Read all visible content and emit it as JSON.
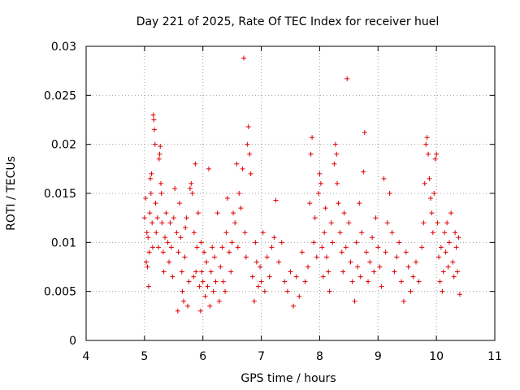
{
  "chart_data": {
    "type": "scatter",
    "title": "Day 221 of 2025, Rate Of TEC Index for receiver huel",
    "xlabel": "GPS time / hours",
    "ylabel": "ROTI / TECUs",
    "xlim": [
      4,
      11
    ],
    "ylim": [
      0,
      0.03
    ],
    "x_ticks": [
      "4",
      "5",
      "6",
      "7",
      "8",
      "9",
      "10",
      "11"
    ],
    "y_ticks": [
      "0",
      "0.005",
      "0.01",
      "0.015",
      "0.02",
      "0.025",
      "0.03"
    ],
    "grid": true,
    "legend": "none",
    "marker": "+",
    "color": "#e00000",
    "series": [
      {
        "points": [
          [
            5.0,
            0.0125
          ],
          [
            5.02,
            0.0145
          ],
          [
            5.03,
            0.008
          ],
          [
            5.04,
            0.011
          ],
          [
            5.05,
            0.0075
          ],
          [
            5.06,
            0.0105
          ],
          [
            5.07,
            0.0055
          ],
          [
            5.08,
            0.009
          ],
          [
            5.09,
            0.013
          ],
          [
            5.1,
            0.0165
          ],
          [
            5.11,
            0.015
          ],
          [
            5.12,
            0.017
          ],
          [
            5.13,
            0.012
          ],
          [
            5.14,
            0.0095
          ],
          [
            5.15,
            0.023
          ],
          [
            5.16,
            0.0225
          ],
          [
            5.17,
            0.0215
          ],
          [
            5.18,
            0.02
          ],
          [
            5.19,
            0.014
          ],
          [
            5.2,
            0.011
          ],
          [
            5.22,
            0.0125
          ],
          [
            5.24,
            0.0095
          ],
          [
            5.25,
            0.0185
          ],
          [
            5.26,
            0.019
          ],
          [
            5.27,
            0.0198
          ],
          [
            5.28,
            0.016
          ],
          [
            5.29,
            0.015
          ],
          [
            5.3,
            0.012
          ],
          [
            5.32,
            0.009
          ],
          [
            5.33,
            0.007
          ],
          [
            5.35,
            0.0105
          ],
          [
            5.37,
            0.013
          ],
          [
            5.4,
            0.01
          ],
          [
            5.42,
            0.008
          ],
          [
            5.44,
            0.012
          ],
          [
            5.46,
            0.0095
          ],
          [
            5.48,
            0.0065
          ],
          [
            5.5,
            0.0125
          ],
          [
            5.52,
            0.0155
          ],
          [
            5.55,
            0.011
          ],
          [
            5.57,
            0.003
          ],
          [
            5.58,
            0.009
          ],
          [
            5.6,
            0.014
          ],
          [
            5.62,
            0.0105
          ],
          [
            5.64,
            0.007
          ],
          [
            5.65,
            0.005
          ],
          [
            5.67,
            0.004
          ],
          [
            5.69,
            0.0085
          ],
          [
            5.7,
            0.0115
          ],
          [
            5.72,
            0.0125
          ],
          [
            5.74,
            0.0035
          ],
          [
            5.76,
            0.006
          ],
          [
            5.78,
            0.0155
          ],
          [
            5.8,
            0.016
          ],
          [
            5.82,
            0.015
          ],
          [
            5.84,
            0.0065
          ],
          [
            5.85,
            0.011
          ],
          [
            5.87,
            0.018
          ],
          [
            5.88,
            0.007
          ],
          [
            5.9,
            0.0095
          ],
          [
            5.92,
            0.013
          ],
          [
            5.94,
            0.0055
          ],
          [
            5.96,
            0.003
          ],
          [
            5.97,
            0.01
          ],
          [
            5.98,
            0.007
          ],
          [
            6.0,
            0.006
          ],
          [
            6.02,
            0.009
          ],
          [
            6.04,
            0.0045
          ],
          [
            6.06,
            0.008
          ],
          [
            6.08,
            0.0055
          ],
          [
            6.1,
            0.0175
          ],
          [
            6.12,
            0.0035
          ],
          [
            6.14,
            0.007
          ],
          [
            6.16,
            0.0095
          ],
          [
            6.18,
            0.005
          ],
          [
            6.2,
            0.0085
          ],
          [
            6.22,
            0.006
          ],
          [
            6.25,
            0.013
          ],
          [
            6.28,
            0.004
          ],
          [
            6.3,
            0.0075
          ],
          [
            6.33,
            0.0095
          ],
          [
            6.35,
            0.006
          ],
          [
            6.38,
            0.005
          ],
          [
            6.4,
            0.011
          ],
          [
            6.42,
            0.0145
          ],
          [
            6.45,
            0.009
          ],
          [
            6.48,
            0.007
          ],
          [
            6.5,
            0.01
          ],
          [
            6.52,
            0.013
          ],
          [
            6.55,
            0.012
          ],
          [
            6.58,
            0.018
          ],
          [
            6.6,
            0.0095
          ],
          [
            6.62,
            0.015
          ],
          [
            6.65,
            0.0135
          ],
          [
            6.68,
            0.0175
          ],
          [
            6.7,
            0.0288
          ],
          [
            6.72,
            0.011
          ],
          [
            6.74,
            0.0085
          ],
          [
            6.76,
            0.02
          ],
          [
            6.78,
            0.0218
          ],
          [
            6.8,
            0.019
          ],
          [
            6.82,
            0.017
          ],
          [
            6.85,
            0.0065
          ],
          [
            6.88,
            0.004
          ],
          [
            6.9,
            0.01
          ],
          [
            6.92,
            0.008
          ],
          [
            6.95,
            0.0055
          ],
          [
            6.98,
            0.0075
          ],
          [
            7.0,
            0.006
          ],
          [
            7.03,
            0.011
          ],
          [
            7.06,
            0.005
          ],
          [
            7.1,
            0.0085
          ],
          [
            7.14,
            0.0065
          ],
          [
            7.18,
            0.0095
          ],
          [
            7.22,
            0.0105
          ],
          [
            7.25,
            0.0143
          ],
          [
            7.3,
            0.008
          ],
          [
            7.35,
            0.01
          ],
          [
            7.4,
            0.006
          ],
          [
            7.45,
            0.005
          ],
          [
            7.5,
            0.007
          ],
          [
            7.55,
            0.0035
          ],
          [
            7.6,
            0.0065
          ],
          [
            7.65,
            0.0045
          ],
          [
            7.7,
            0.009
          ],
          [
            7.75,
            0.006
          ],
          [
            7.8,
            0.0075
          ],
          [
            7.83,
            0.014
          ],
          [
            7.85,
            0.019
          ],
          [
            7.87,
            0.0207
          ],
          [
            7.9,
            0.01
          ],
          [
            7.92,
            0.0125
          ],
          [
            7.95,
            0.0085
          ],
          [
            7.98,
            0.015
          ],
          [
            8.0,
            0.017
          ],
          [
            8.02,
            0.016
          ],
          [
            8.04,
            0.0095
          ],
          [
            8.06,
            0.0065
          ],
          [
            8.08,
            0.011
          ],
          [
            8.1,
            0.0135
          ],
          [
            8.12,
            0.0085
          ],
          [
            8.15,
            0.007
          ],
          [
            8.17,
            0.005
          ],
          [
            8.2,
            0.012
          ],
          [
            8.22,
            0.01
          ],
          [
            8.25,
            0.018
          ],
          [
            8.27,
            0.02
          ],
          [
            8.29,
            0.019
          ],
          [
            8.3,
            0.016
          ],
          [
            8.32,
            0.014
          ],
          [
            8.35,
            0.011
          ],
          [
            8.38,
            0.009
          ],
          [
            8.4,
            0.007
          ],
          [
            8.42,
            0.013
          ],
          [
            8.45,
            0.0095
          ],
          [
            8.47,
            0.0267
          ],
          [
            8.5,
            0.012
          ],
          [
            8.53,
            0.008
          ],
          [
            8.56,
            0.006
          ],
          [
            8.6,
            0.004
          ],
          [
            8.63,
            0.01
          ],
          [
            8.65,
            0.0075
          ],
          [
            8.68,
            0.014
          ],
          [
            8.7,
            0.0065
          ],
          [
            8.72,
            0.011
          ],
          [
            8.75,
            0.0172
          ],
          [
            8.77,
            0.0212
          ],
          [
            8.8,
            0.009
          ],
          [
            8.83,
            0.006
          ],
          [
            8.86,
            0.008
          ],
          [
            8.9,
            0.0105
          ],
          [
            8.93,
            0.007
          ],
          [
            8.96,
            0.0125
          ],
          [
            9.0,
            0.0095
          ],
          [
            9.03,
            0.0075
          ],
          [
            9.06,
            0.0055
          ],
          [
            9.1,
            0.0165
          ],
          [
            9.13,
            0.009
          ],
          [
            9.16,
            0.012
          ],
          [
            9.2,
            0.015
          ],
          [
            9.24,
            0.011
          ],
          [
            9.28,
            0.007
          ],
          [
            9.32,
            0.0085
          ],
          [
            9.36,
            0.01
          ],
          [
            9.4,
            0.006
          ],
          [
            9.44,
            0.004
          ],
          [
            9.48,
            0.009
          ],
          [
            9.52,
            0.0075
          ],
          [
            9.56,
            0.005
          ],
          [
            9.6,
            0.0065
          ],
          [
            9.65,
            0.008
          ],
          [
            9.7,
            0.006
          ],
          [
            9.75,
            0.0095
          ],
          [
            9.78,
            0.012
          ],
          [
            9.8,
            0.016
          ],
          [
            9.82,
            0.02
          ],
          [
            9.84,
            0.0207
          ],
          [
            9.86,
            0.019
          ],
          [
            9.88,
            0.0165
          ],
          [
            9.9,
            0.0145
          ],
          [
            9.92,
            0.013
          ],
          [
            9.94,
            0.011
          ],
          [
            9.96,
            0.015
          ],
          [
            9.98,
            0.0185
          ],
          [
            10.0,
            0.019
          ],
          [
            10.02,
            0.012
          ],
          [
            10.04,
            0.0085
          ],
          [
            10.06,
            0.006
          ],
          [
            10.08,
            0.0095
          ],
          [
            10.1,
            0.005
          ],
          [
            10.12,
            0.007
          ],
          [
            10.14,
            0.011
          ],
          [
            10.16,
            0.009
          ],
          [
            10.18,
            0.012
          ],
          [
            10.2,
            0.0075
          ],
          [
            10.22,
            0.01
          ],
          [
            10.25,
            0.013
          ],
          [
            10.28,
            0.008
          ],
          [
            10.3,
            0.0065
          ],
          [
            10.32,
            0.011
          ],
          [
            10.34,
            0.0095
          ],
          [
            10.36,
            0.007
          ],
          [
            10.38,
            0.0105
          ],
          [
            10.4,
            0.0047
          ]
        ]
      }
    ]
  }
}
